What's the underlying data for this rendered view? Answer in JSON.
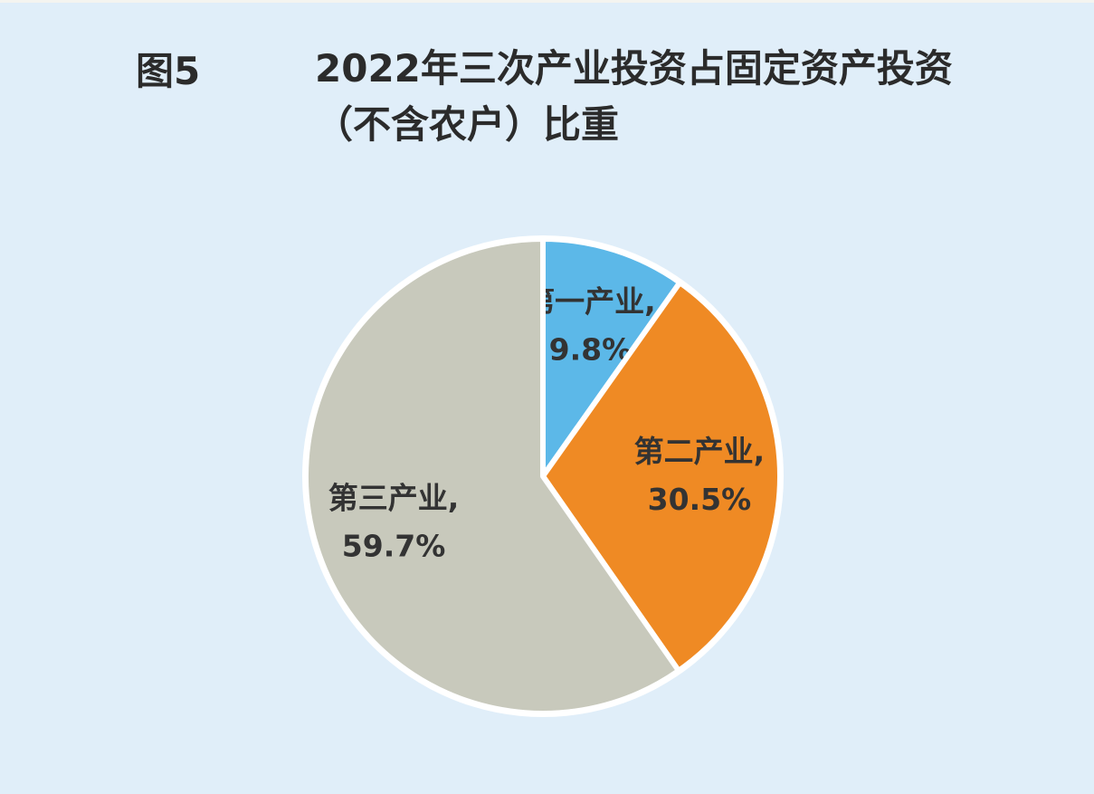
{
  "chart_data": {
    "type": "pie",
    "figure_label": "图5",
    "title": "2022年三次产业投资占固定资产投资（不含农户）比重",
    "categories": [
      "第一产业,",
      "第二产业,",
      "第三产业,"
    ],
    "values": [
      9.8,
      30.5,
      59.7
    ],
    "value_labels": [
      "9.8%",
      "30.5%",
      "59.7%"
    ],
    "colors": [
      "#5cb8e8",
      "#ef8a24",
      "#c8c9bc"
    ]
  }
}
